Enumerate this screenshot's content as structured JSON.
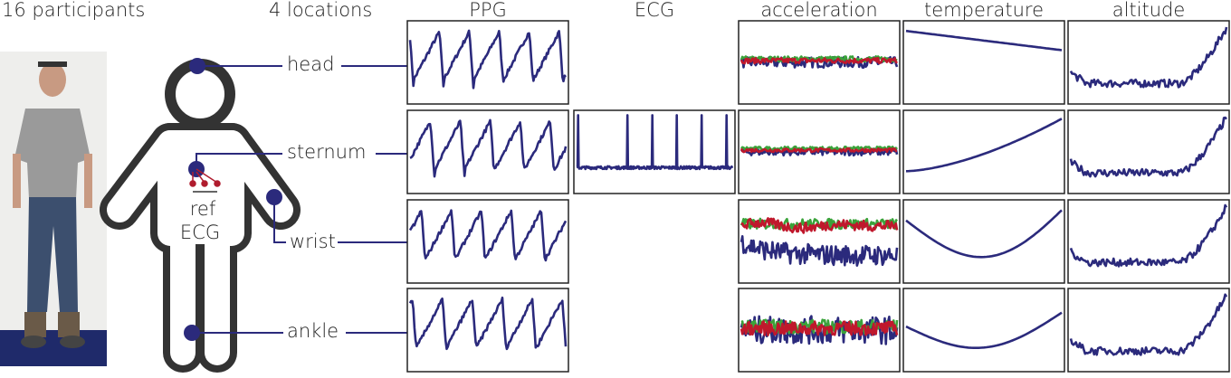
{
  "header": {
    "participants": "16 participants",
    "locations": "4 locations"
  },
  "columns": [
    "PPG",
    "ECG",
    "acceleration",
    "temperature",
    "altitude"
  ],
  "locations": [
    "head",
    "sternum",
    "wrist",
    "ankle"
  ],
  "reference": {
    "line1": "ref",
    "line2": "ECG"
  }
}
